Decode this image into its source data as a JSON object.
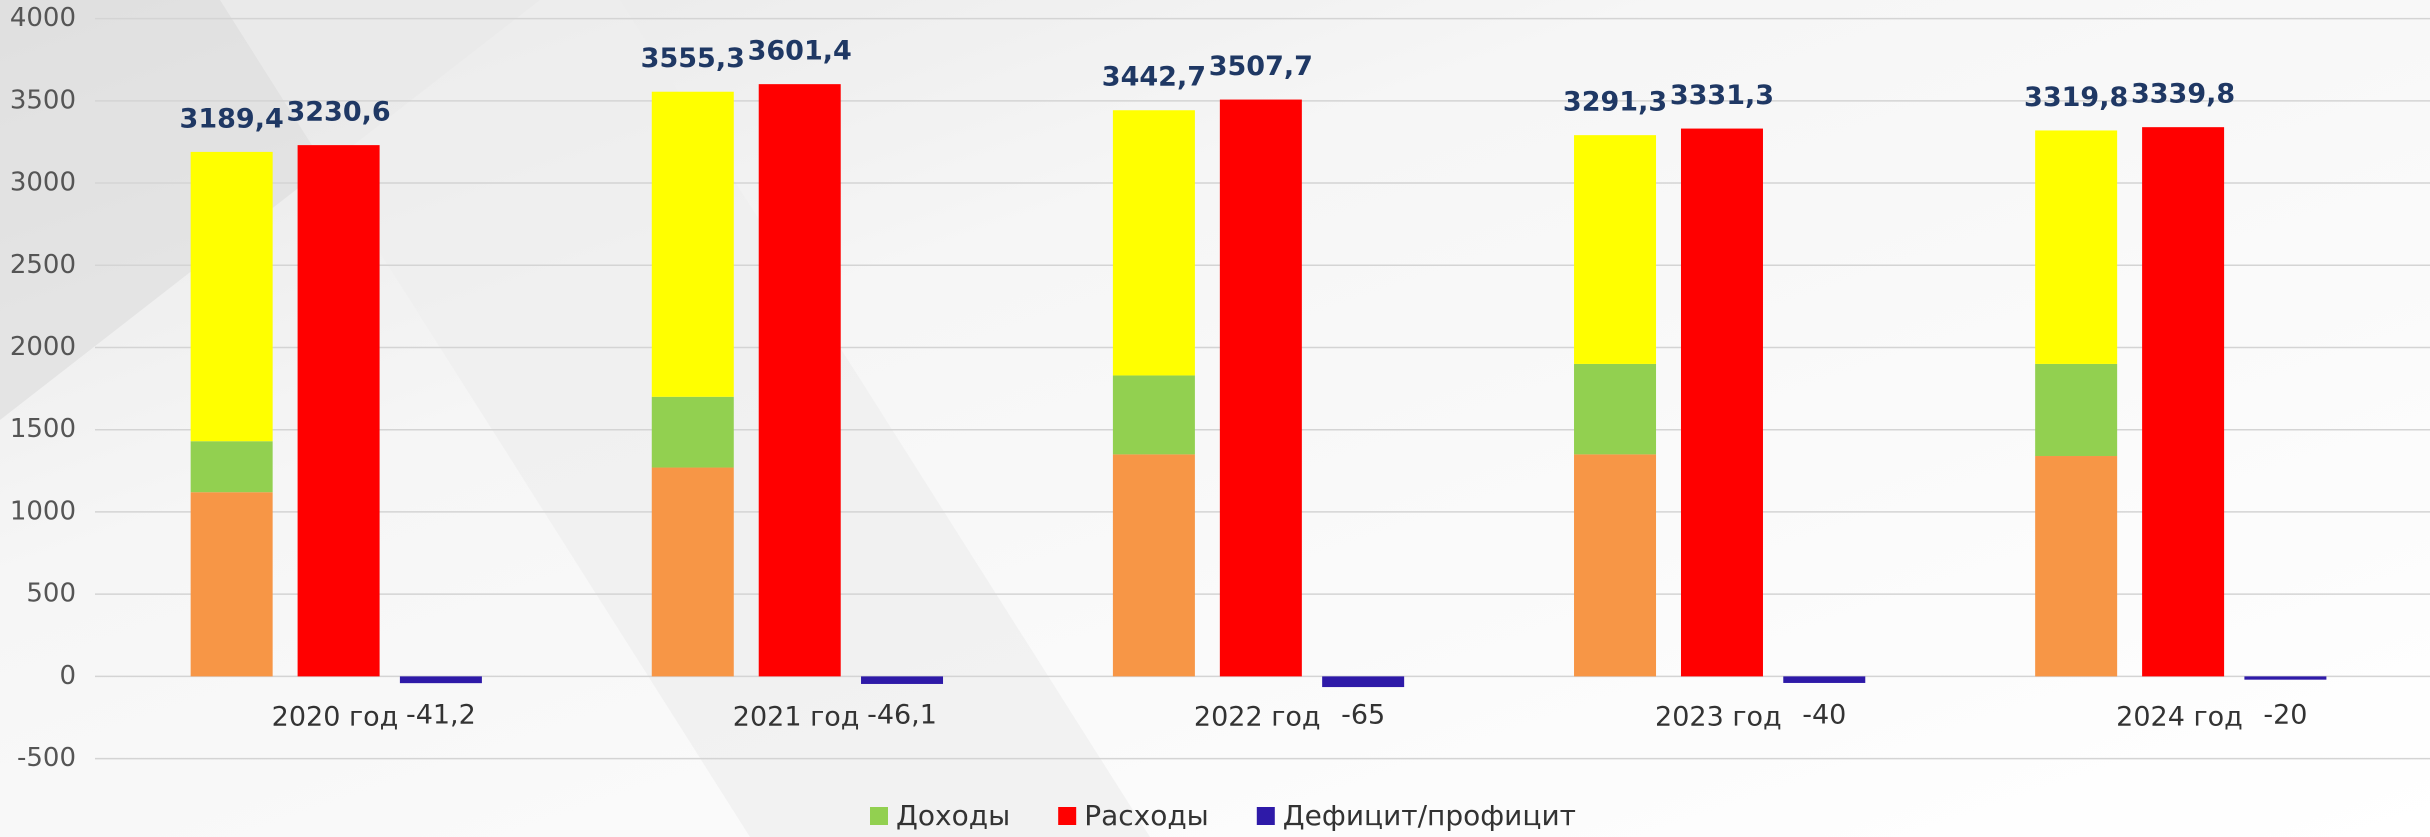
{
  "chart_data": {
    "type": "bar",
    "categories": [
      "2020 год",
      "2021 год",
      "2022 год",
      "2023 год",
      "2024 год"
    ],
    "series": [
      {
        "name": "Доходы",
        "color": "#92d050",
        "segment_colors": [
          "#f79646",
          "#92d050",
          "#ffff00"
        ],
        "segments": [
          [
            1120,
            310,
            1759.4
          ],
          [
            1270,
            430,
            1855.3
          ],
          [
            1350,
            480,
            1612.7
          ],
          [
            1350,
            550,
            1391.3
          ],
          [
            1340,
            560,
            1419.8
          ]
        ],
        "values": [
          3189.4,
          3555.3,
          3442.7,
          3291.3,
          3319.8
        ],
        "value_labels": [
          "3189,4",
          "3555,3",
          "3442,7",
          "3291,3",
          "3319,8"
        ]
      },
      {
        "name": "Расходы",
        "color": "#ff0000",
        "values": [
          3230.6,
          3601.4,
          3507.7,
          3331.3,
          3339.8
        ],
        "value_labels": [
          "3230,6",
          "3601,4",
          "3507,7",
          "3331,3",
          "3339,8"
        ]
      },
      {
        "name": "Дефицит/профицит",
        "color": "#2e1aa8",
        "values": [
          -41.2,
          -46.1,
          -65,
          -40,
          -20
        ],
        "value_labels": [
          "-41,2",
          "-46,1",
          "-65",
          "-40",
          "-20"
        ]
      }
    ],
    "ylim": [
      -500,
      4000
    ],
    "yticks": [
      -500,
      0,
      500,
      1000,
      1500,
      2000,
      2500,
      3000,
      3500,
      4000
    ],
    "grid": true,
    "legend": "bottom"
  }
}
